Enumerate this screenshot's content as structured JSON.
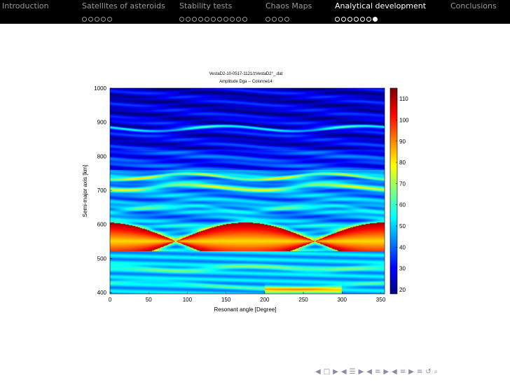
{
  "nav": {
    "sections": [
      {
        "label": "Introduction",
        "dots": 0,
        "current": -1,
        "active": false
      },
      {
        "label": "Satellites of asteroids",
        "dots": 5,
        "current": -1,
        "active": false
      },
      {
        "label": "Stability tests",
        "dots": 11,
        "current": -1,
        "active": false
      },
      {
        "label": "Chaos Maps",
        "dots": 4,
        "current": -1,
        "active": false
      },
      {
        "label": "Analytical development",
        "dots": 7,
        "current": 6,
        "active": true
      },
      {
        "label": "Conclusions",
        "dots": 0,
        "current": -1,
        "active": false
      }
    ]
  },
  "chart_data": {
    "type": "heatmap",
    "title": "VestaD2-10-0517-1121/zVestaD2°_.dat",
    "subtitle": "Amplitude Dga -- Colonne14",
    "xlabel": "Resonant angle  [Degree]",
    "ylabel": "Semi-major axis  [km]",
    "xlim": [
      0,
      355
    ],
    "ylim": [
      396,
      1000
    ],
    "xticks": [
      0,
      50,
      100,
      150,
      200,
      250,
      300,
      350
    ],
    "yticks": [
      400,
      500,
      600,
      700,
      800,
      900,
      1000
    ],
    "colorbar": {
      "range": [
        18,
        115
      ],
      "ticks": [
        20,
        30,
        40,
        50,
        60,
        70,
        80,
        90,
        100,
        110
      ],
      "colormap": "jet"
    },
    "features": {
      "separatrix_center_a": 550,
      "separatrix_nodes_x": [
        85,
        265
      ],
      "resonance_lobe_centers_x": [
        175,
        355,
        -5
      ],
      "band_centers_a": [
        880,
        740,
        700,
        640,
        465,
        430
      ]
    }
  },
  "footer": {
    "nav_symbols": [
      "◀",
      "□",
      "▶",
      "◀",
      "☰",
      "▶",
      "◀",
      "≡",
      "▶",
      "◀",
      "≡",
      "▶",
      "≡",
      "↺",
      "⌕"
    ]
  }
}
